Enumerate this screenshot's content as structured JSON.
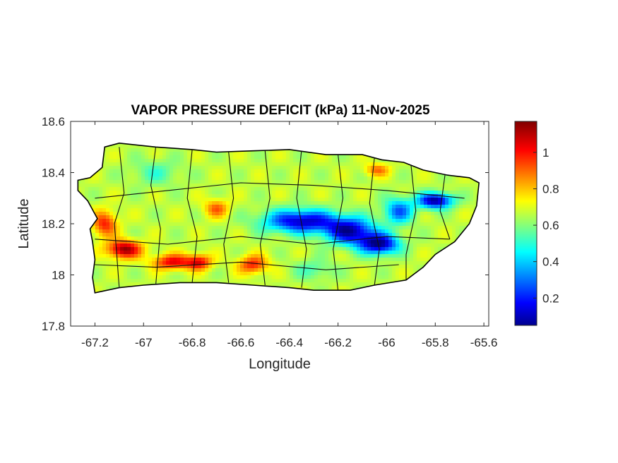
{
  "chart_data": {
    "type": "heatmap",
    "title": "VAPOR PRESSURE DEFICIT (kPa) 11-Nov-2025",
    "xlabel": "Longitude",
    "ylabel": "Latitude",
    "xlim": [
      -67.3,
      -65.58
    ],
    "ylim": [
      17.8,
      18.6
    ],
    "x_ticks": [
      -67.2,
      -67,
      -66.8,
      -66.6,
      -66.4,
      -66.2,
      -66,
      -65.8,
      -65.6
    ],
    "x_tick_labels": [
      "-67.2",
      "-67",
      "-66.8",
      "-66.6",
      "-66.4",
      "-66.2",
      "-66",
      "-65.8",
      "-65.6"
    ],
    "y_ticks": [
      17.8,
      18,
      18.2,
      18.4,
      18.6
    ],
    "y_tick_labels": [
      "17.8",
      "18",
      "18.2",
      "18.4",
      "18.6"
    ],
    "colorbar": {
      "colormap": "jet",
      "range": [
        0.05,
        1.17
      ],
      "ticks": [
        0.2,
        0.4,
        0.6,
        0.8,
        1
      ],
      "tick_labels": [
        "0.2",
        "0.4",
        "0.6",
        "0.8",
        "1"
      ]
    },
    "grid": false,
    "island_outline": [
      [
        -67.27,
        18.37
      ],
      [
        -67.22,
        18.38
      ],
      [
        -67.17,
        18.42
      ],
      [
        -67.16,
        18.5
      ],
      [
        -67.1,
        18.515
      ],
      [
        -66.95,
        18.5
      ],
      [
        -66.8,
        18.49
      ],
      [
        -66.7,
        18.48
      ],
      [
        -66.55,
        18.485
      ],
      [
        -66.4,
        18.49
      ],
      [
        -66.25,
        18.47
      ],
      [
        -66.1,
        18.47
      ],
      [
        -66.02,
        18.45
      ],
      [
        -65.93,
        18.44
      ],
      [
        -65.85,
        18.41
      ],
      [
        -65.75,
        18.39
      ],
      [
        -65.66,
        18.38
      ],
      [
        -65.62,
        18.36
      ],
      [
        -65.63,
        18.27
      ],
      [
        -65.66,
        18.2
      ],
      [
        -65.72,
        18.13
      ],
      [
        -65.8,
        18.08
      ],
      [
        -65.85,
        18.03
      ],
      [
        -65.92,
        17.98
      ],
      [
        -66.05,
        17.96
      ],
      [
        -66.15,
        17.94
      ],
      [
        -66.3,
        17.94
      ],
      [
        -66.4,
        17.95
      ],
      [
        -66.55,
        17.96
      ],
      [
        -66.7,
        17.97
      ],
      [
        -66.85,
        17.97
      ],
      [
        -67.0,
        17.96
      ],
      [
        -67.1,
        17.95
      ],
      [
        -67.2,
        17.93
      ],
      [
        -67.21,
        17.99
      ],
      [
        -67.2,
        18.06
      ],
      [
        -67.21,
        18.13
      ],
      [
        -67.22,
        18.18
      ],
      [
        -67.19,
        18.22
      ],
      [
        -67.23,
        18.29
      ],
      [
        -67.27,
        18.33
      ]
    ],
    "field_anomalies": [
      {
        "lon": -67.08,
        "lat": 18.1,
        "value": 1.15,
        "sx": 0.07,
        "sy": 0.035
      },
      {
        "lon": -67.16,
        "lat": 18.2,
        "value": 1.0,
        "sx": 0.05,
        "sy": 0.05
      },
      {
        "lon": -66.88,
        "lat": 18.05,
        "value": 1.05,
        "sx": 0.08,
        "sy": 0.03
      },
      {
        "lon": -66.77,
        "lat": 18.05,
        "value": 1.02,
        "sx": 0.05,
        "sy": 0.03
      },
      {
        "lon": -66.55,
        "lat": 18.04,
        "value": 1.0,
        "sx": 0.06,
        "sy": 0.035
      },
      {
        "lon": -66.7,
        "lat": 18.26,
        "value": 0.92,
        "sx": 0.05,
        "sy": 0.035
      },
      {
        "lon": -66.04,
        "lat": 18.41,
        "value": 0.9,
        "sx": 0.05,
        "sy": 0.025
      },
      {
        "lon": -66.35,
        "lat": 18.21,
        "value": 0.12,
        "sx": 0.15,
        "sy": 0.045
      },
      {
        "lon": -66.15,
        "lat": 18.17,
        "value": 0.12,
        "sx": 0.1,
        "sy": 0.05
      },
      {
        "lon": -66.03,
        "lat": 18.12,
        "value": 0.08,
        "sx": 0.08,
        "sy": 0.04
      },
      {
        "lon": -65.8,
        "lat": 18.29,
        "value": 0.07,
        "sx": 0.07,
        "sy": 0.03
      },
      {
        "lon": -65.95,
        "lat": 18.25,
        "value": 0.3,
        "sx": 0.06,
        "sy": 0.05
      },
      {
        "lon": -66.3,
        "lat": 18.02,
        "value": 0.55,
        "sx": 0.08,
        "sy": 0.04
      },
      {
        "lon": -66.95,
        "lat": 18.4,
        "value": 0.55,
        "sx": 0.1,
        "sy": 0.05
      }
    ],
    "field_base": 0.68
  }
}
